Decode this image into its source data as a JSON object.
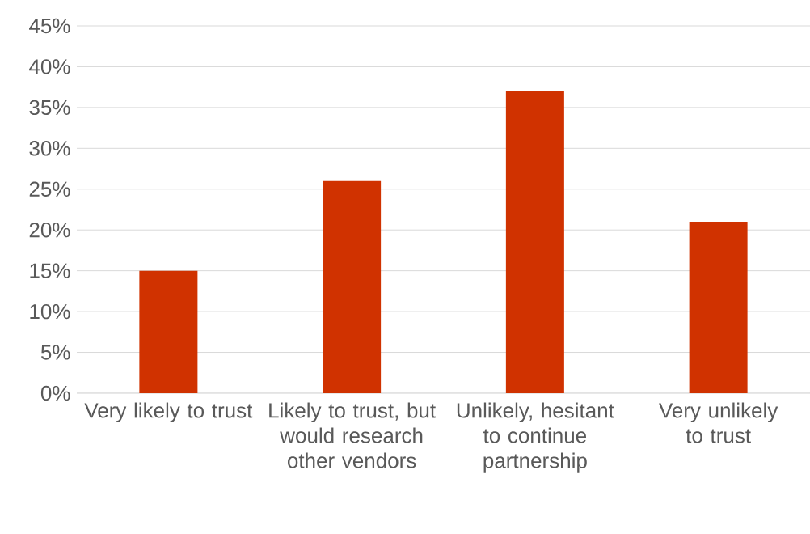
{
  "chart_data": {
    "type": "bar",
    "categories": [
      "Very likely to trust",
      "Likely to trust, but would research other vendors",
      "Unlikely, hesitant to continue partnership",
      "Very unlikely to trust"
    ],
    "values": [
      15,
      26,
      37,
      21
    ],
    "color": "#d03200",
    "ylim": [
      0,
      45
    ],
    "yticks": [
      {
        "value": 0,
        "label": "0%"
      },
      {
        "value": 5,
        "label": "5%"
      },
      {
        "value": 10,
        "label": "10%"
      },
      {
        "value": 15,
        "label": "15%"
      },
      {
        "value": 20,
        "label": "20%"
      },
      {
        "value": 25,
        "label": "25%"
      },
      {
        "value": 30,
        "label": "30%"
      },
      {
        "value": 35,
        "label": "35%"
      },
      {
        "value": 40,
        "label": "40%"
      },
      {
        "value": 45,
        "label": "45%"
      }
    ],
    "grid": "y"
  }
}
